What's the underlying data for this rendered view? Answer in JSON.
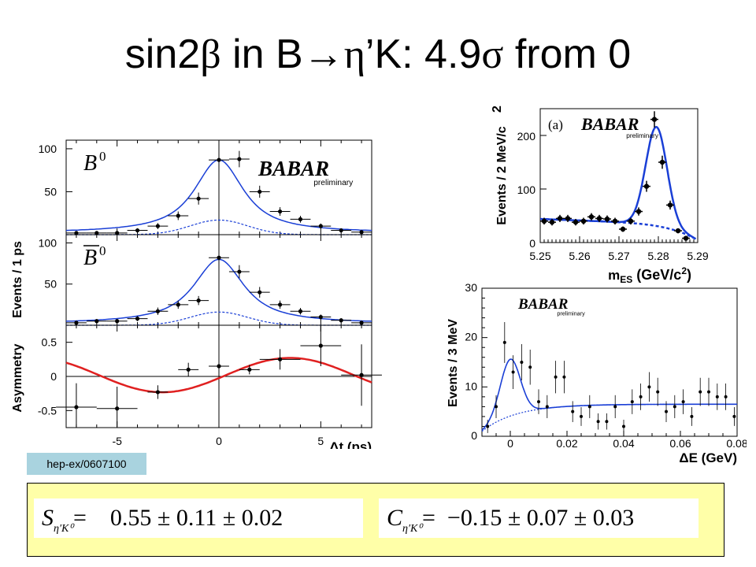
{
  "slide": {
    "title": {
      "pre": "sin2",
      "beta": "β",
      "mid": " in B",
      "arrow": "→",
      "eta": "η",
      "post": "’K: 4.9",
      "sigma": "σ",
      "tail": " from 0"
    },
    "reference": "hep-ex/0607100",
    "formulas": [
      {
        "symbol": "S",
        "subscript": "η′K⁰",
        "eq": "=",
        "value": "0.55 ± 0.11 ± 0.02"
      },
      {
        "symbol": "C",
        "subscript": "η′K⁰",
        "eq": "=",
        "value": "−0.15 ± 0.07 ± 0.03"
      }
    ],
    "colors": {
      "fit": "#1a3fd6",
      "asymmetry_fit": "#e02020",
      "formula_panel": "#ffffa8",
      "reference_box": "#a9d3df"
    }
  },
  "chart_data": [
    {
      "type": "scatter",
      "id": "delta-t",
      "logo": "BABAR",
      "logo_sub": "preliminary",
      "xlabel": "Δt (ps)",
      "xlim": [
        -7.5,
        7.5
      ],
      "xticks": [
        -5,
        0,
        5
      ],
      "panels": [
        {
          "label": "B",
          "label_sup": "0",
          "ylabel": "Events / 1 ps",
          "ylim": [
            0,
            110
          ],
          "yticks": [
            50,
            100
          ],
          "x": [
            -7,
            -6,
            -5,
            -4,
            -3,
            -2,
            -1,
            0,
            1,
            2,
            3,
            4,
            5,
            6,
            7
          ],
          "y": [
            2,
            2,
            2,
            5,
            10,
            22,
            42,
            87,
            88,
            50,
            27,
            18,
            10,
            5,
            3
          ],
          "yerr": [
            1.5,
            1.5,
            1.5,
            2.5,
            3.5,
            5,
            7,
            9.5,
            9.5,
            7,
            5,
            4,
            3,
            2.5,
            2
          ],
          "fit_peak": 85,
          "fit_width": 1.5,
          "background_peak": 17,
          "background_width": 1.4
        },
        {
          "label": "B",
          "label_bar": true,
          "label_sup": "0",
          "ylabel": "Events / 1 ps",
          "ylim": [
            0,
            110
          ],
          "yticks": [
            50,
            100
          ],
          "x": [
            -7,
            -6,
            -5,
            -4,
            -3,
            -2,
            -1,
            0,
            1,
            2,
            3,
            4,
            5,
            6,
            7
          ],
          "y": [
            3,
            5,
            5,
            8,
            17,
            25,
            30,
            82,
            65,
            40,
            25,
            17,
            10,
            6,
            3
          ],
          "yerr": [
            2,
            2.5,
            2.5,
            3,
            4.5,
            5,
            5.5,
            9,
            8,
            6.5,
            5,
            4,
            3,
            2.5,
            2
          ],
          "fit_peak": 78,
          "fit_width": 1.55,
          "background_peak": 16,
          "background_width": 1.4
        },
        {
          "label": "",
          "ylabel": "Asymmetry",
          "ylim": [
            -0.75,
            0.75
          ],
          "yticks": [
            -0.5,
            0,
            0.5
          ],
          "x": [
            -7,
            -5,
            -3,
            -1.5,
            0,
            1.5,
            3,
            5,
            7
          ],
          "y": [
            -0.45,
            -0.47,
            -0.23,
            0.1,
            0.15,
            0.1,
            0.25,
            0.45,
            0.02
          ],
          "yerr": [
            0.35,
            0.32,
            0.1,
            0.1,
            0.07,
            0.07,
            0.15,
            0.3,
            0.45
          ],
          "xerr": [
            1,
            1,
            0.5,
            0.5,
            0.5,
            0.5,
            1,
            1,
            1
          ],
          "fit_amplitude": 0.55,
          "fit_frequency": 0.502,
          "fit_C": 0.15
        }
      ]
    },
    {
      "type": "scatter",
      "id": "mes",
      "panel_tag": "(a)",
      "logo": "BABAR",
      "logo_sub": "preliminary",
      "xlabel": "m",
      "xlabel_sub": "ES",
      "xlabel_unit": " (GeV/c",
      "xlabel_unit_sup": "2",
      "xlabel_unit_end": ")",
      "ylabel": "Events / 2 MeV/c",
      "ylabel_sup": "2",
      "xlim": [
        5.25,
        5.29
      ],
      "ylim": [
        0,
        250
      ],
      "xticks": [
        5.25,
        5.26,
        5.27,
        5.28,
        5.29
      ],
      "yticks": [
        0,
        100,
        200
      ],
      "x": [
        5.251,
        5.253,
        5.255,
        5.257,
        5.259,
        5.261,
        5.263,
        5.265,
        5.267,
        5.269,
        5.271,
        5.273,
        5.275,
        5.277,
        5.279,
        5.281,
        5.283,
        5.285,
        5.287
      ],
      "y": [
        40,
        38,
        45,
        45,
        38,
        40,
        48,
        45,
        44,
        40,
        25,
        40,
        58,
        105,
        230,
        150,
        70,
        22,
        8
      ],
      "fit_mean": 5.2795,
      "fit_sigma": 0.0027,
      "fit_amplitude": 185,
      "background_level": 44
    },
    {
      "type": "scatter",
      "id": "delta-e",
      "logo": "BABAR",
      "logo_sub": "preliminary",
      "xlabel": "ΔE (GeV)",
      "ylabel": "Events / 3 MeV",
      "xlim": [
        -0.01,
        0.08
      ],
      "ylim": [
        0,
        30
      ],
      "xticks": [
        0,
        0.02,
        0.04,
        0.06,
        0.08
      ],
      "yticks": [
        0,
        10,
        20,
        30
      ],
      "x": [
        -0.008,
        -0.005,
        -0.002,
        0.001,
        0.004,
        0.007,
        0.01,
        0.013,
        0.016,
        0.019,
        0.022,
        0.025,
        0.028,
        0.031,
        0.034,
        0.037,
        0.04,
        0.043,
        0.046,
        0.049,
        0.052,
        0.055,
        0.058,
        0.061,
        0.064,
        0.067,
        0.07,
        0.073,
        0.076,
        0.079
      ],
      "y": [
        2,
        6,
        19,
        13,
        15,
        14,
        7,
        6,
        12,
        12,
        5,
        4,
        6,
        3,
        3,
        6,
        2,
        7,
        8,
        10,
        9,
        5,
        6,
        7,
        4,
        9,
        9,
        8,
        8,
        4
      ],
      "fit_peak_x": 0.0,
      "fit_peak_height": 11.5,
      "background_plateau": 6.5
    }
  ]
}
